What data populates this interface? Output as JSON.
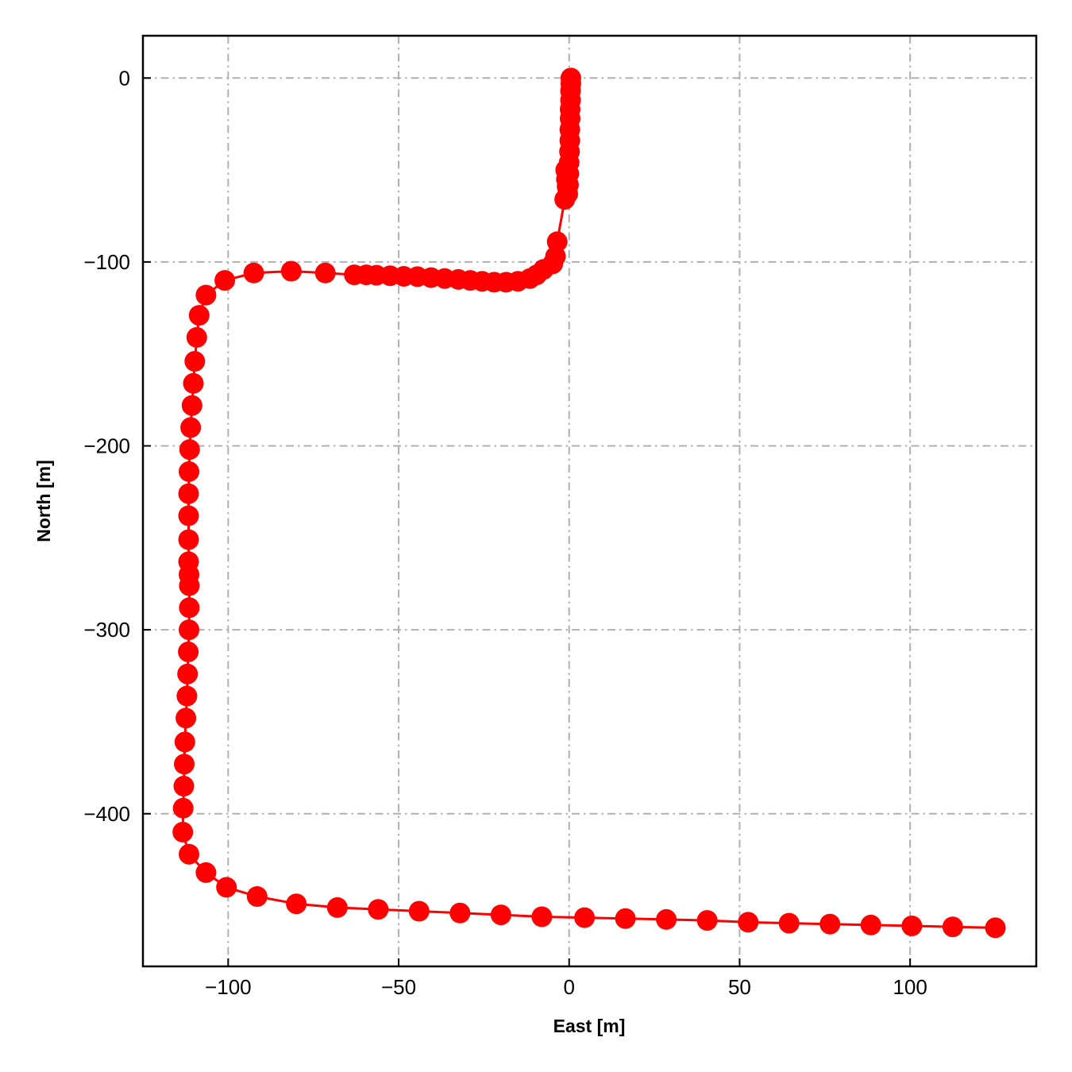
{
  "chart_data": {
    "type": "scatter",
    "title": "",
    "xlabel": "East [m]",
    "ylabel": "North [m]",
    "xlim": [
      -125,
      137
    ],
    "ylim": [
      -483,
      23
    ],
    "xticks": [
      -100,
      -50,
      0,
      50,
      100
    ],
    "xtick_labels": [
      "−100",
      "−50",
      "0",
      "50",
      "100"
    ],
    "yticks": [
      0,
      -100,
      -200,
      -300,
      -400
    ],
    "ytick_labels": [
      "0",
      "−100",
      "−200",
      "−300",
      "−400"
    ],
    "grid": true,
    "grid_style": "dash-dot",
    "legend": "none",
    "colors": {
      "series": "#ff0000",
      "grid": "#b0b0b0",
      "frame": "#000000"
    },
    "series": [
      {
        "marker": "circle",
        "line": true,
        "x": [
          0.5,
          0.5,
          0.4,
          0.4,
          0.3,
          0.3,
          0.2,
          0.2,
          0.1,
          0.0,
          -0.1,
          -0.2,
          -0.4,
          -0.6,
          -0.8,
          -1.0,
          -1.3,
          -3.5,
          -4.0,
          -4.8,
          -7.5,
          -9.5,
          -11.5,
          -15.0,
          -18.5,
          -22.0,
          -25.5,
          -29.0,
          -32.5,
          -36.5,
          -40.5,
          -44.5,
          -48.5,
          -52.5,
          -56.5,
          -59.5,
          -63.0,
          -71.5,
          -81.5,
          -92.5,
          -101.0,
          -106.5,
          -108.5,
          -109.2,
          -109.8,
          -110.2,
          -110.6,
          -111.0,
          -111.3,
          -111.5,
          -111.6,
          -111.6,
          -111.6,
          -111.6,
          -111.5,
          -111.4,
          -111.4,
          -111.5,
          -111.7,
          -111.9,
          -112.1,
          -112.4,
          -112.7,
          -112.9,
          -113.0,
          -113.2,
          -113.3,
          -111.5,
          -106.5,
          -100.5,
          -91.5,
          -80.0,
          -68.0,
          -56.0,
          -44.0,
          -32.0,
          -20.0,
          -8.0,
          4.5,
          16.5,
          28.5,
          40.5,
          52.5,
          64.5,
          76.5,
          88.5,
          100.5,
          112.5,
          125.0
        ],
        "y": [
          0,
          -3,
          -7,
          -12,
          -17,
          -22,
          -28,
          -34,
          -40,
          -46,
          -52,
          -58,
          -63,
          -59,
          -55,
          -50,
          -66,
          -89,
          -97,
          -101,
          -104,
          -107,
          -109,
          -110.5,
          -111,
          -111,
          -110.5,
          -110,
          -109.5,
          -109,
          -108.5,
          -108,
          -107.8,
          -107.5,
          -107.2,
          -107,
          -107,
          -106,
          -105,
          -106,
          -110,
          -118,
          -129,
          -141,
          -154,
          -166,
          -178,
          -190,
          -202,
          -214,
          -226,
          -238,
          -251,
          -263,
          -270,
          -276,
          -288,
          -300,
          -312,
          -324,
          -336,
          -348,
          -361,
          -373,
          -385,
          -397,
          -410,
          -422,
          -432,
          -440,
          -445,
          -449,
          -451,
          -452,
          -453,
          -454,
          -455,
          -456,
          -456.5,
          -457,
          -457.5,
          -458,
          -459,
          -459.5,
          -460,
          -460.5,
          -461,
          -461.5,
          -462
        ]
      }
    ]
  }
}
